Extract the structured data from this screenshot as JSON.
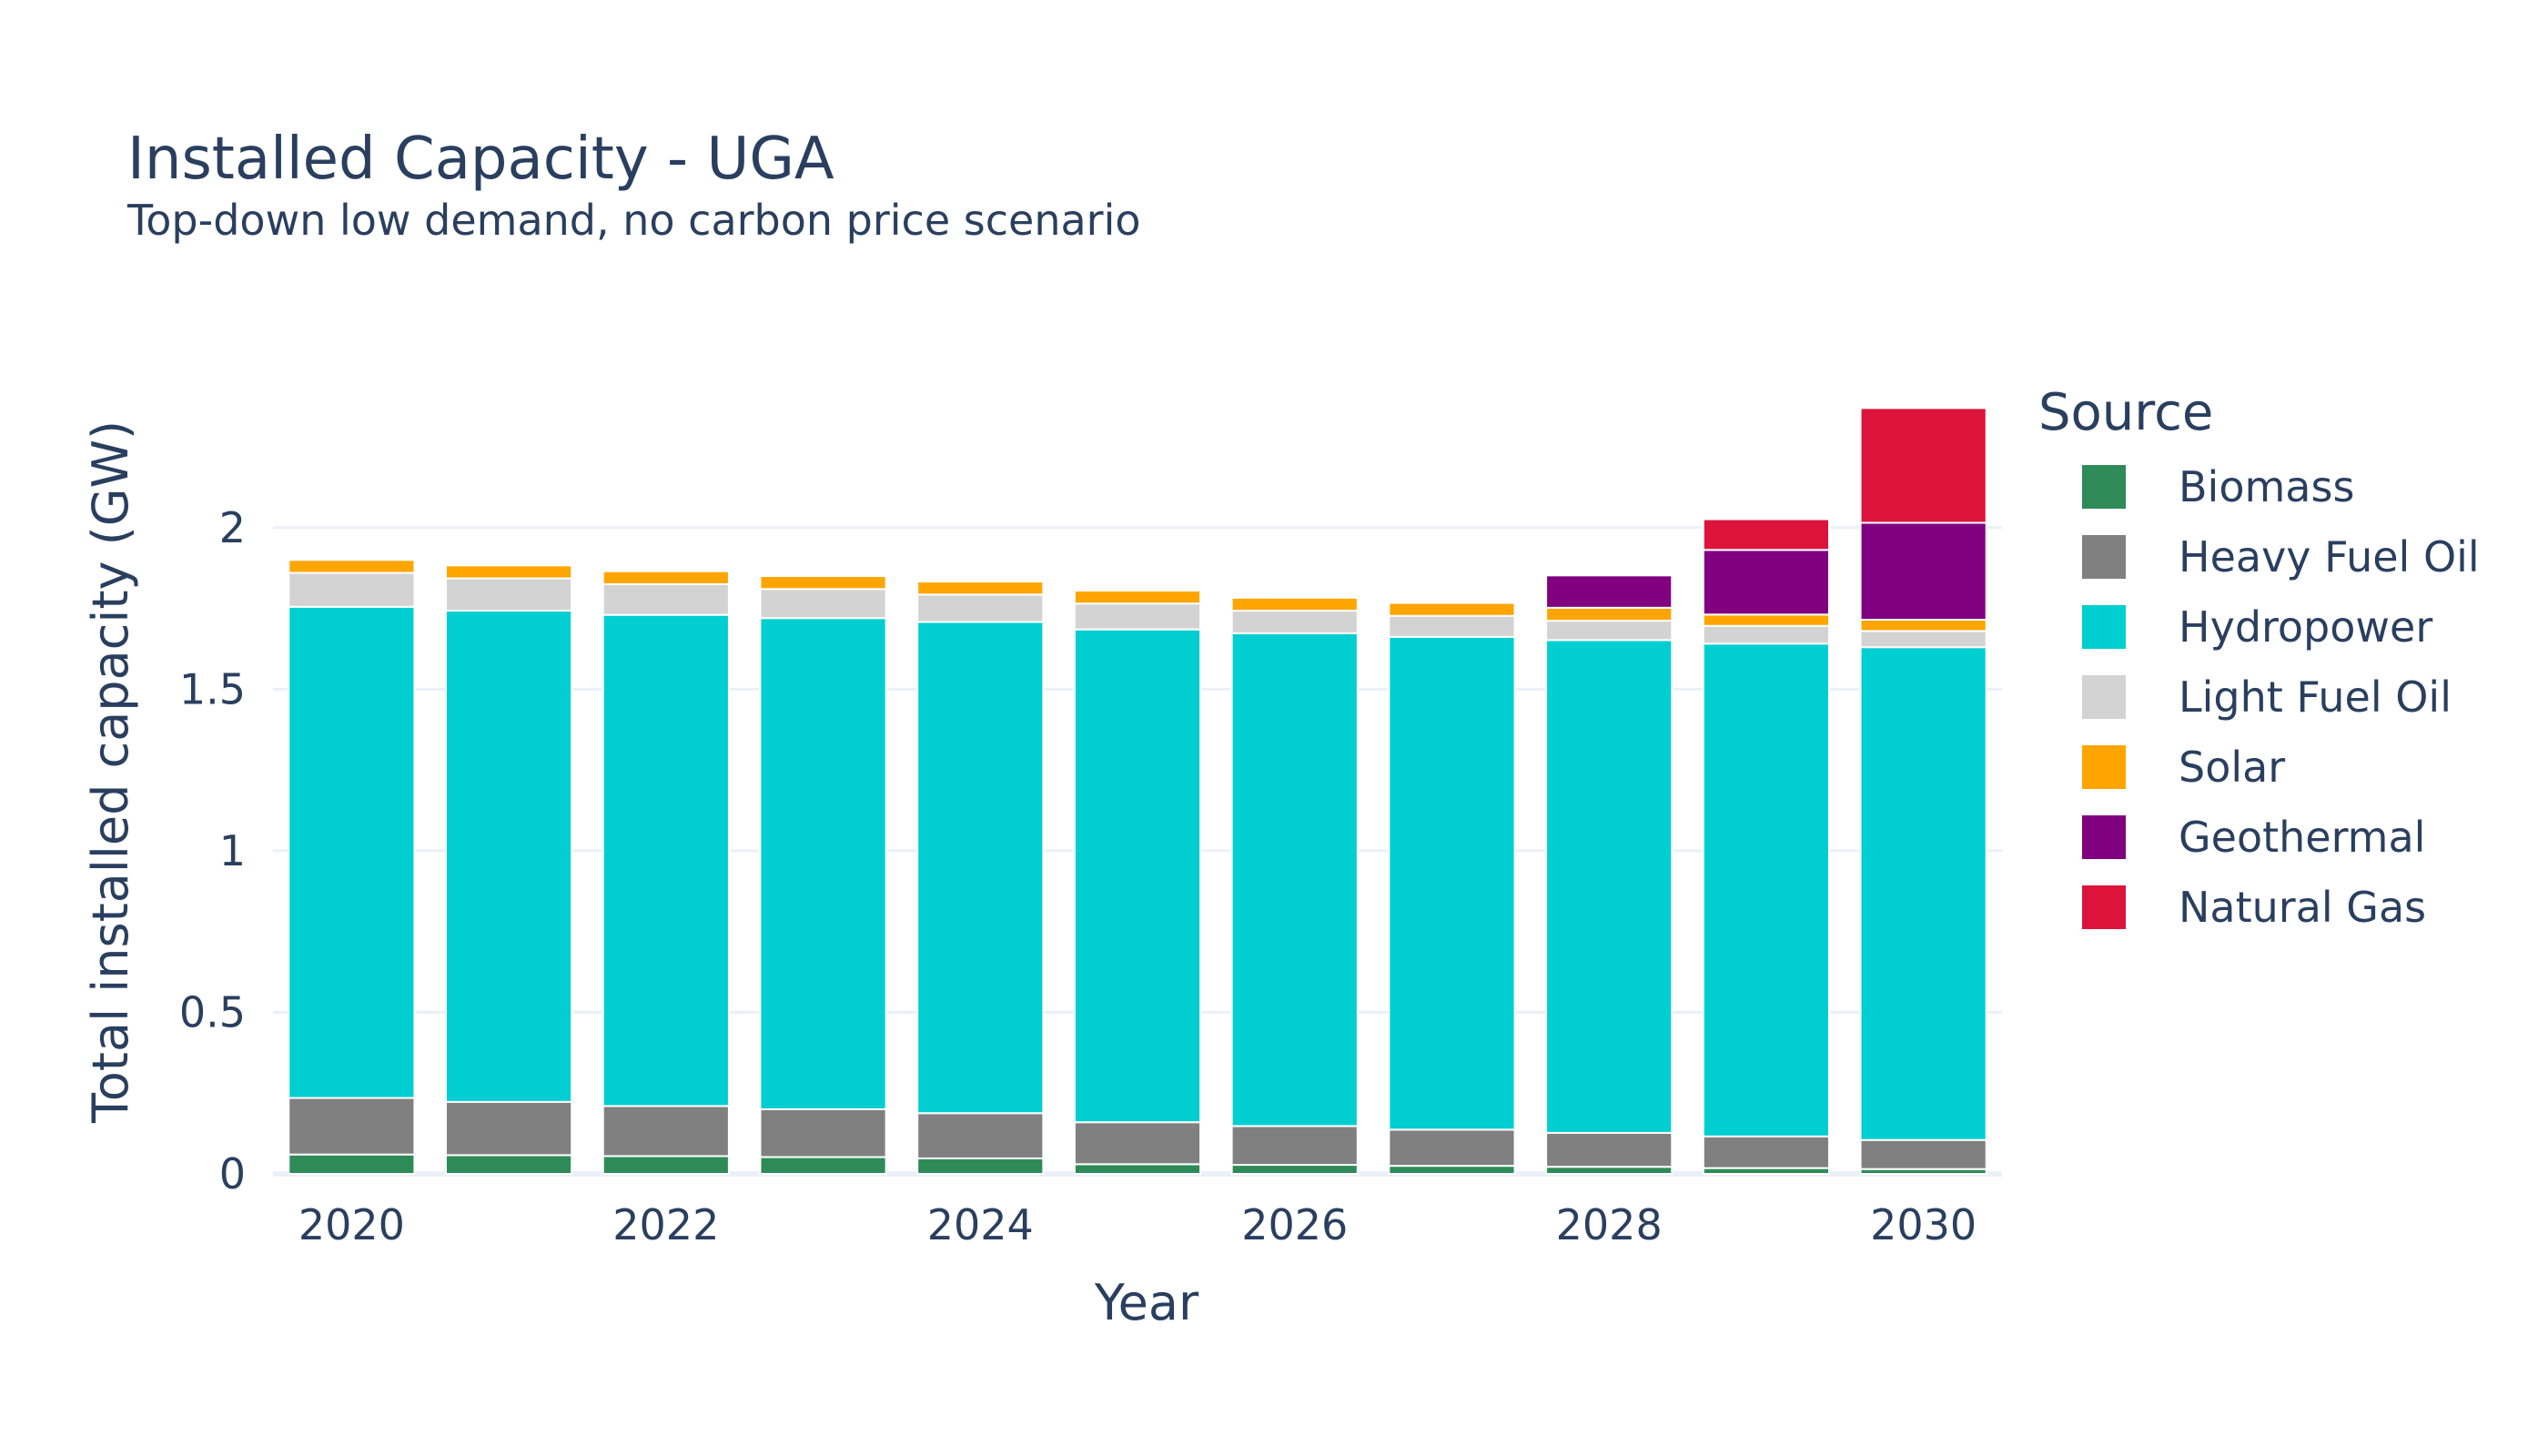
{
  "chart_data": {
    "type": "bar",
    "stacked": true,
    "title": "Installed Capacity - UGA",
    "subtitle": "Top-down low demand, no carbon price scenario",
    "xlabel": "Year",
    "ylabel": "Total installed capacity (GW)",
    "ylim": [
      0,
      2.45
    ],
    "grid": true,
    "legend_title": "Source",
    "legend_placement": "right",
    "x": [
      2020,
      2021,
      2022,
      2023,
      2024,
      2025,
      2026,
      2027,
      2028,
      2029,
      2030
    ],
    "x_ticks": [
      "2020",
      "2022",
      "2024",
      "2026",
      "2028",
      "2030"
    ],
    "y_ticks": [
      "0",
      "0.5",
      "1",
      "1.5",
      "2"
    ],
    "series": [
      {
        "name": "Biomass",
        "color": "#2e8b57",
        "values": [
          0.06,
          0.058,
          0.055,
          0.052,
          0.048,
          0.03,
          0.028,
          0.025,
          0.022,
          0.018,
          0.015
        ]
      },
      {
        "name": "Heavy Fuel Oil",
        "color": "#808080",
        "values": [
          0.175,
          0.165,
          0.155,
          0.148,
          0.14,
          0.13,
          0.12,
          0.112,
          0.105,
          0.098,
          0.09
        ]
      },
      {
        "name": "Hydropower",
        "color": "#00ced1",
        "values": [
          1.52,
          1.52,
          1.52,
          1.52,
          1.52,
          1.525,
          1.525,
          1.525,
          1.525,
          1.525,
          1.525
        ]
      },
      {
        "name": "Light Fuel Oil",
        "color": "#d3d3d3",
        "values": [
          0.105,
          0.1,
          0.095,
          0.09,
          0.085,
          0.08,
          0.07,
          0.065,
          0.06,
          0.055,
          0.05
        ]
      },
      {
        "name": "Solar",
        "color": "#ffa500",
        "values": [
          0.04,
          0.04,
          0.04,
          0.04,
          0.04,
          0.04,
          0.04,
          0.04,
          0.04,
          0.035,
          0.035
        ]
      },
      {
        "name": "Geothermal",
        "color": "#800080",
        "values": [
          0,
          0,
          0,
          0,
          0,
          0,
          0,
          0,
          0.1,
          0.2,
          0.3
        ]
      },
      {
        "name": "Natural Gas",
        "color": "#dc143c",
        "values": [
          0,
          0,
          0,
          0,
          0,
          0,
          0,
          0,
          0,
          0.095,
          0.355
        ]
      }
    ]
  }
}
